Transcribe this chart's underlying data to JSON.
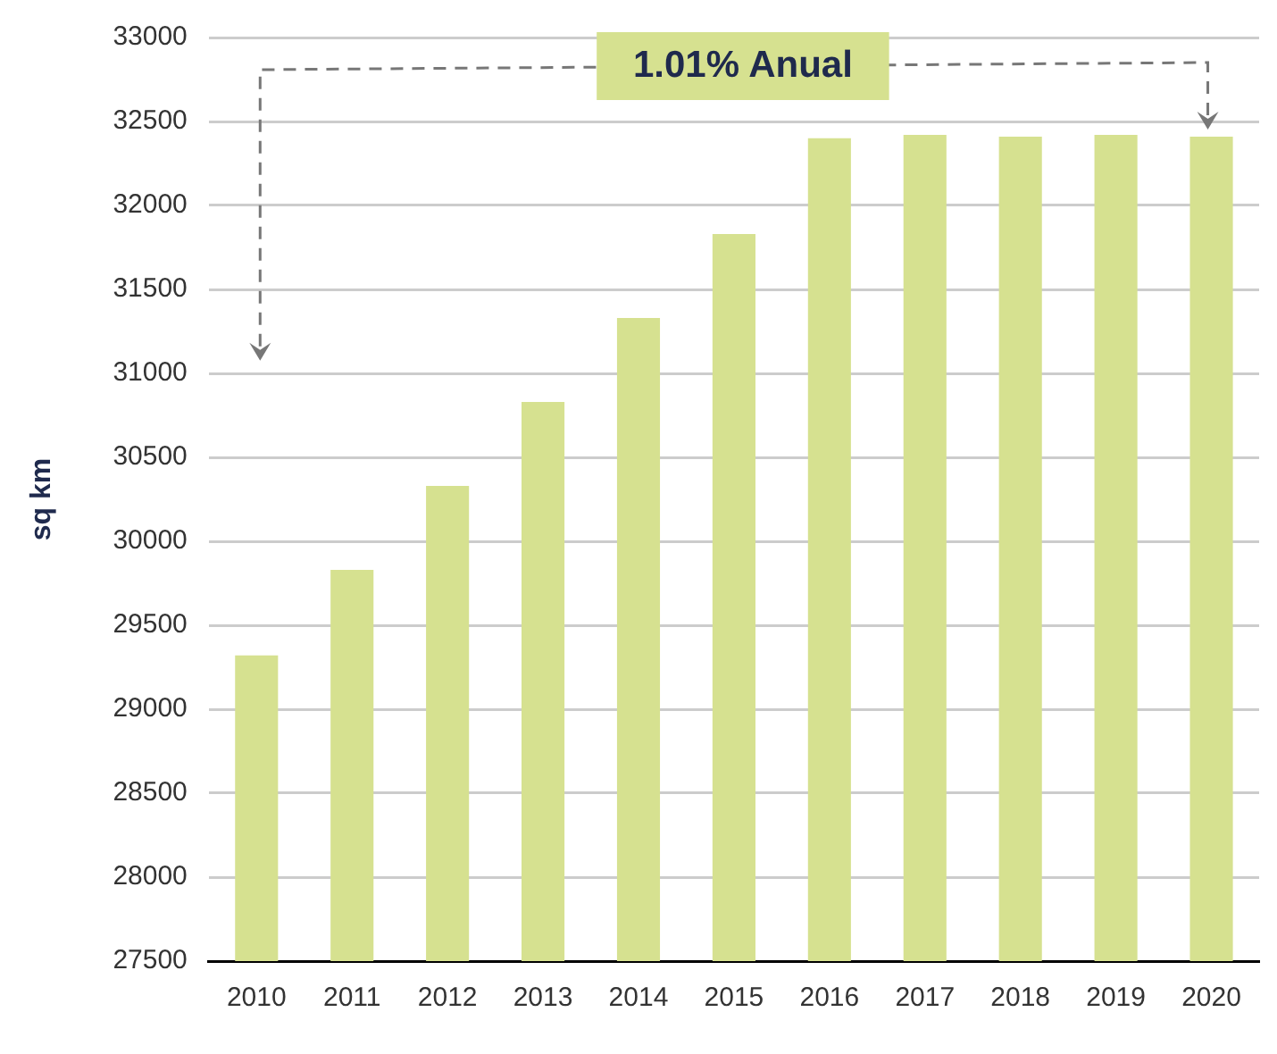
{
  "chart_data": {
    "type": "bar",
    "ylabel": "sq km",
    "categories": [
      "2010",
      "2011",
      "2012",
      "2013",
      "2014",
      "2015",
      "2016",
      "2017",
      "2018",
      "2019",
      "2020"
    ],
    "values": [
      29320,
      29830,
      30330,
      30830,
      31330,
      31830,
      32400,
      32420,
      32410,
      32420,
      32410
    ],
    "color": "#d6e190",
    "ylim": [
      27500,
      33000
    ],
    "yticks": [
      27500,
      28000,
      28500,
      29000,
      29500,
      30000,
      30500,
      31000,
      31500,
      32000,
      32500,
      33000
    ],
    "grid": "y",
    "legend": false,
    "annotations": [
      "1.01% Anual"
    ]
  }
}
